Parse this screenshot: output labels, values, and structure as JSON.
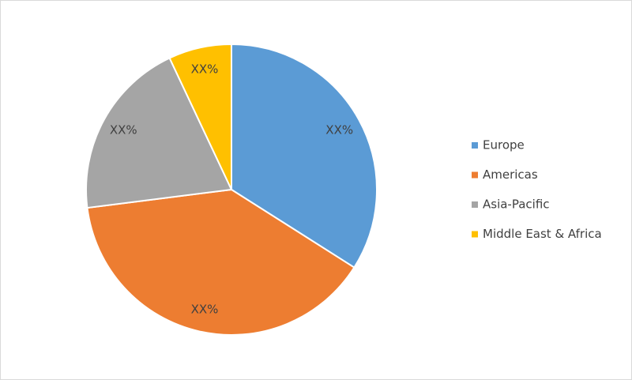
{
  "chart_data": {
    "type": "pie",
    "categories": [
      "Europe",
      "Americas",
      "Asia-Pacific",
      "Middle East & Africa"
    ],
    "values": [
      34,
      39,
      20,
      7
    ],
    "value_labels": [
      "XX%",
      "XX%",
      "XX%",
      "XX%"
    ],
    "colors": [
      "#5b9bd5",
      "#ed7d31",
      "#a5a5a5",
      "#ffc000"
    ],
    "legend": "right"
  }
}
